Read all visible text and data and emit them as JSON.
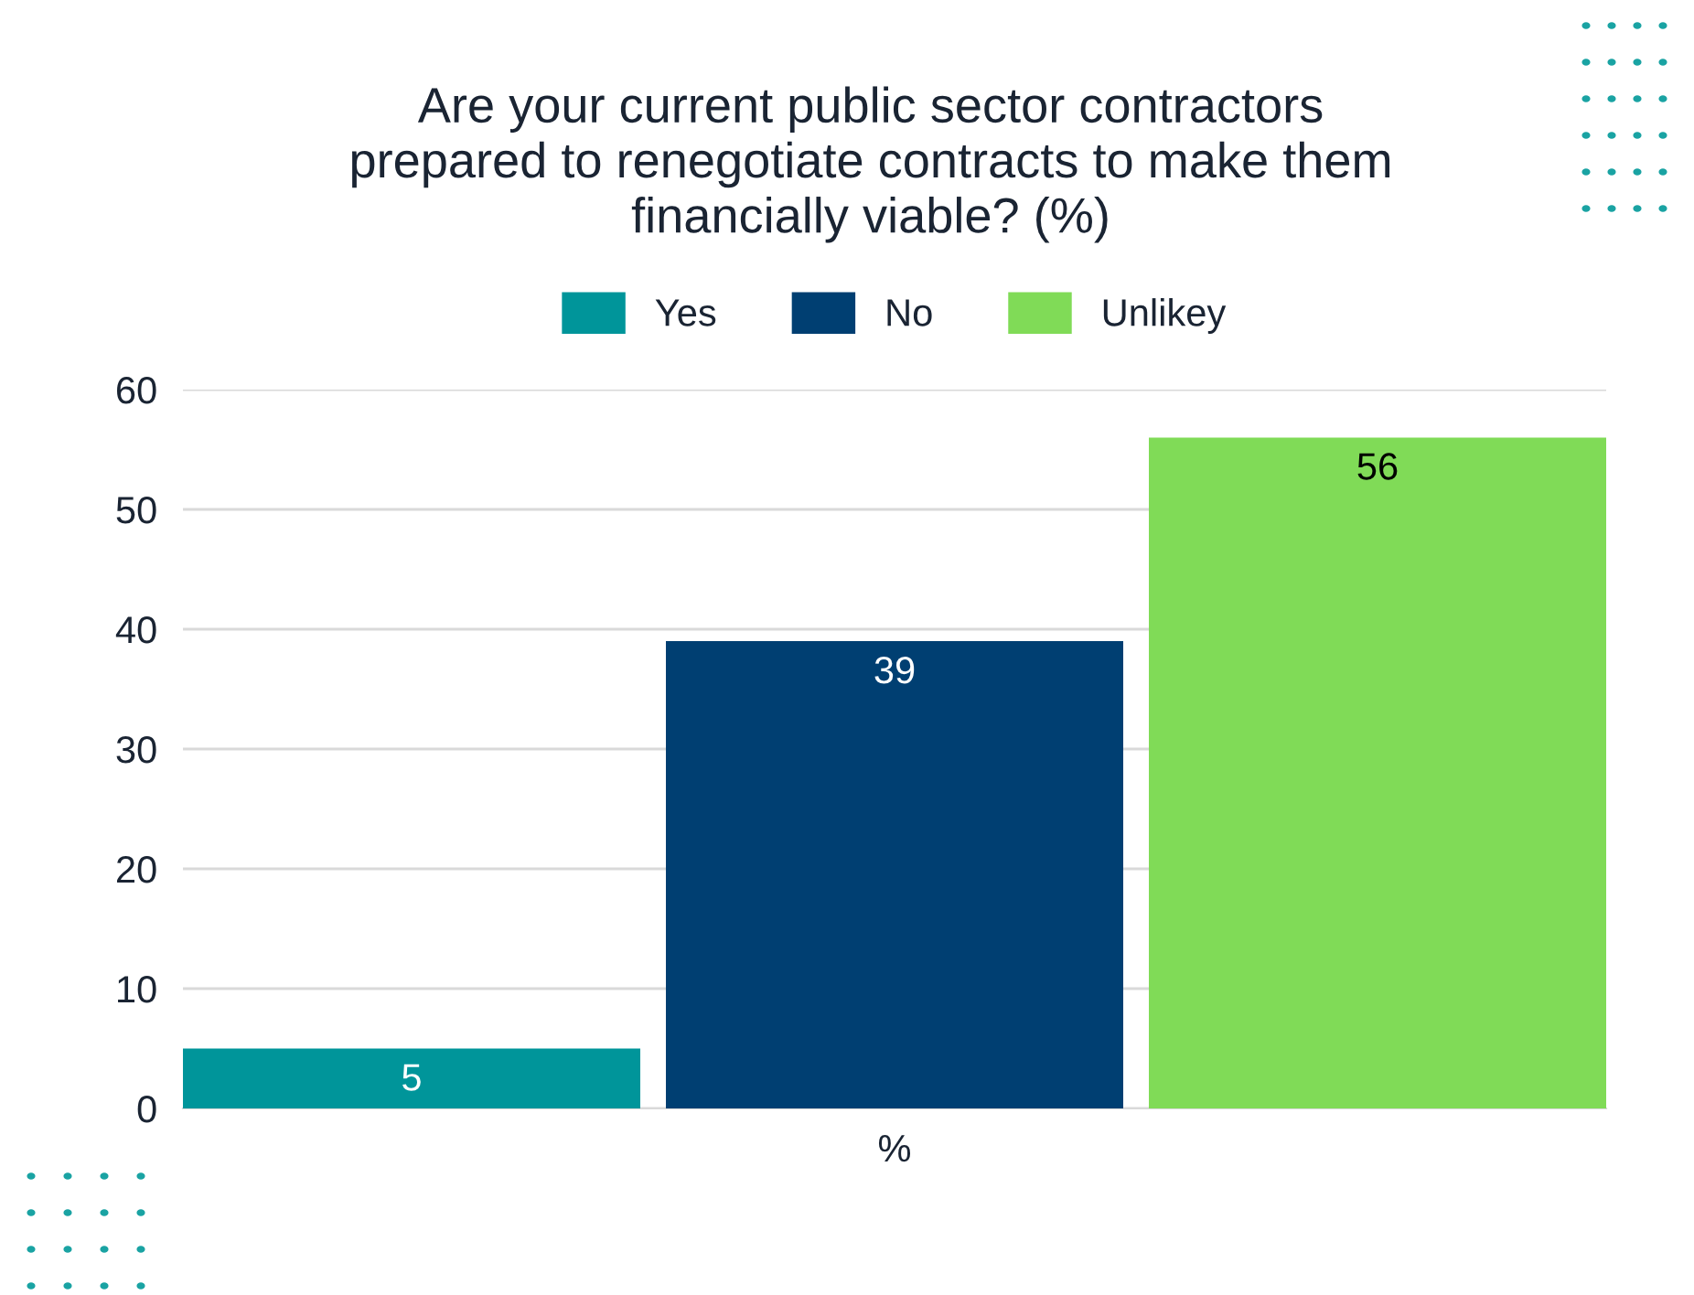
{
  "chart_data": {
    "type": "bar",
    "title": "Are your current public sector contractors\nprepared to renegotiate contracts to make them\nfinancially viable? (%)",
    "categories": [
      "%"
    ],
    "series": [
      {
        "name": "Yes",
        "color": "#00959a",
        "values": [
          5
        ]
      },
      {
        "name": "No",
        "color": "#003f72",
        "values": [
          39
        ]
      },
      {
        "name": "Unlikey",
        "color": "#80db57",
        "values": [
          56
        ]
      }
    ],
    "ylim": [
      0,
      60
    ],
    "yticks": [
      0,
      10,
      20,
      30,
      40,
      50,
      60
    ],
    "grid": "y",
    "legend": "top",
    "data_labels": true
  }
}
